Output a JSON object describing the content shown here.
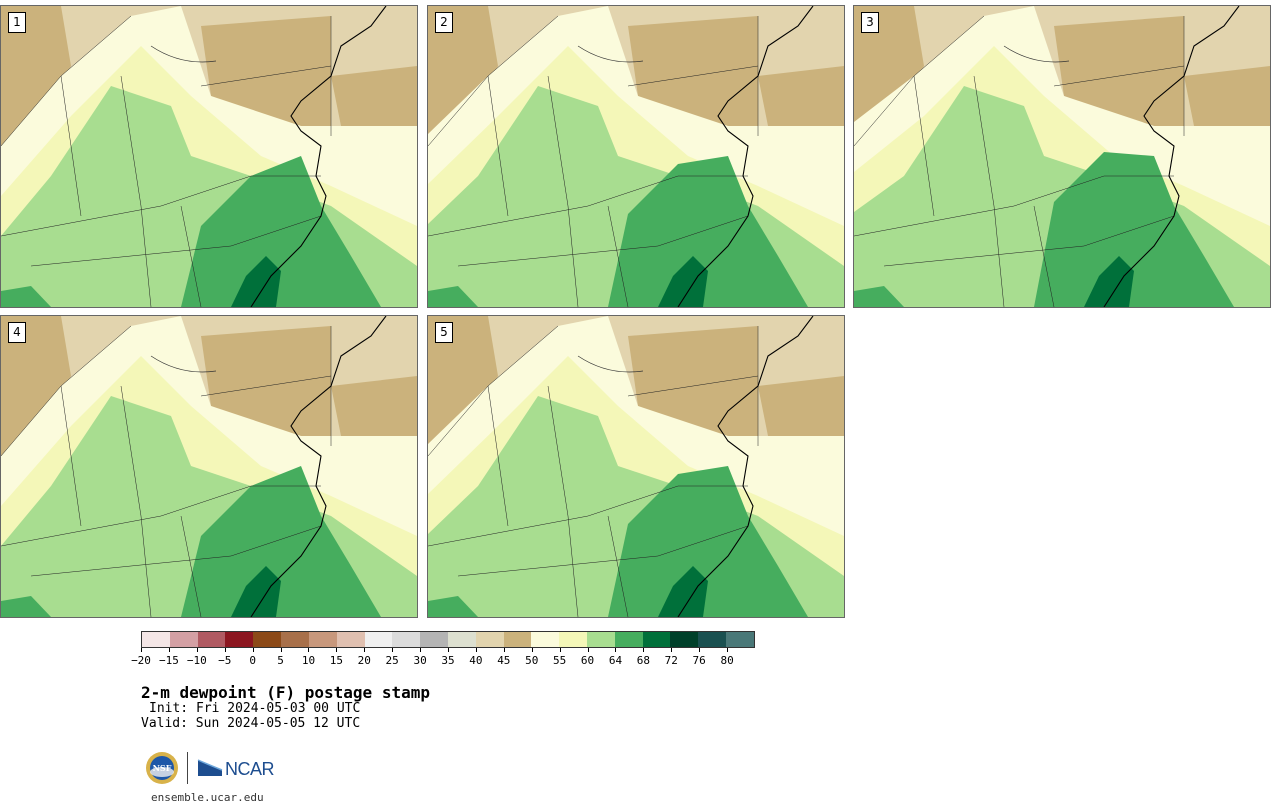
{
  "panels": [
    {
      "label": "1",
      "green_shift": 0
    },
    {
      "label": "2",
      "green_shift": 1
    },
    {
      "label": "3",
      "green_shift": 2
    },
    {
      "label": "4",
      "green_shift": 0
    },
    {
      "label": "5",
      "green_shift": 1
    }
  ],
  "colorbar": {
    "colors": [
      "#f4e6e6",
      "#d4a0a4",
      "#b05a62",
      "#8c1620",
      "#8c4a18",
      "#a8704a",
      "#c8987c",
      "#e0c0b0",
      "#f0f0f0",
      "#dcdcdc",
      "#b4b4b4",
      "#dde0d0",
      "#e2d4ae",
      "#cbb27c",
      "#fbfbdc",
      "#f4f7b8",
      "#a8dd90",
      "#46ad5e",
      "#00703a",
      "#00402a",
      "#1a5050",
      "#4a7878"
    ],
    "ticks": [
      "−20",
      "−15",
      "−10",
      "−5",
      "0",
      "5",
      "10",
      "15",
      "20",
      "25",
      "30",
      "35",
      "40",
      "45",
      "50",
      "55",
      "60",
      "64",
      "68",
      "72",
      "76",
      "80"
    ]
  },
  "title": "2-m dewpoint (F) postage stamp",
  "init": "Init: Fri 2024-05-03 00 UTC",
  "valid": "Valid: Sun 2024-05-05 12 UTC",
  "logos": {
    "ncar": "NCAR",
    "nsf": "NSF"
  },
  "url": "ensemble.ucar.edu"
}
